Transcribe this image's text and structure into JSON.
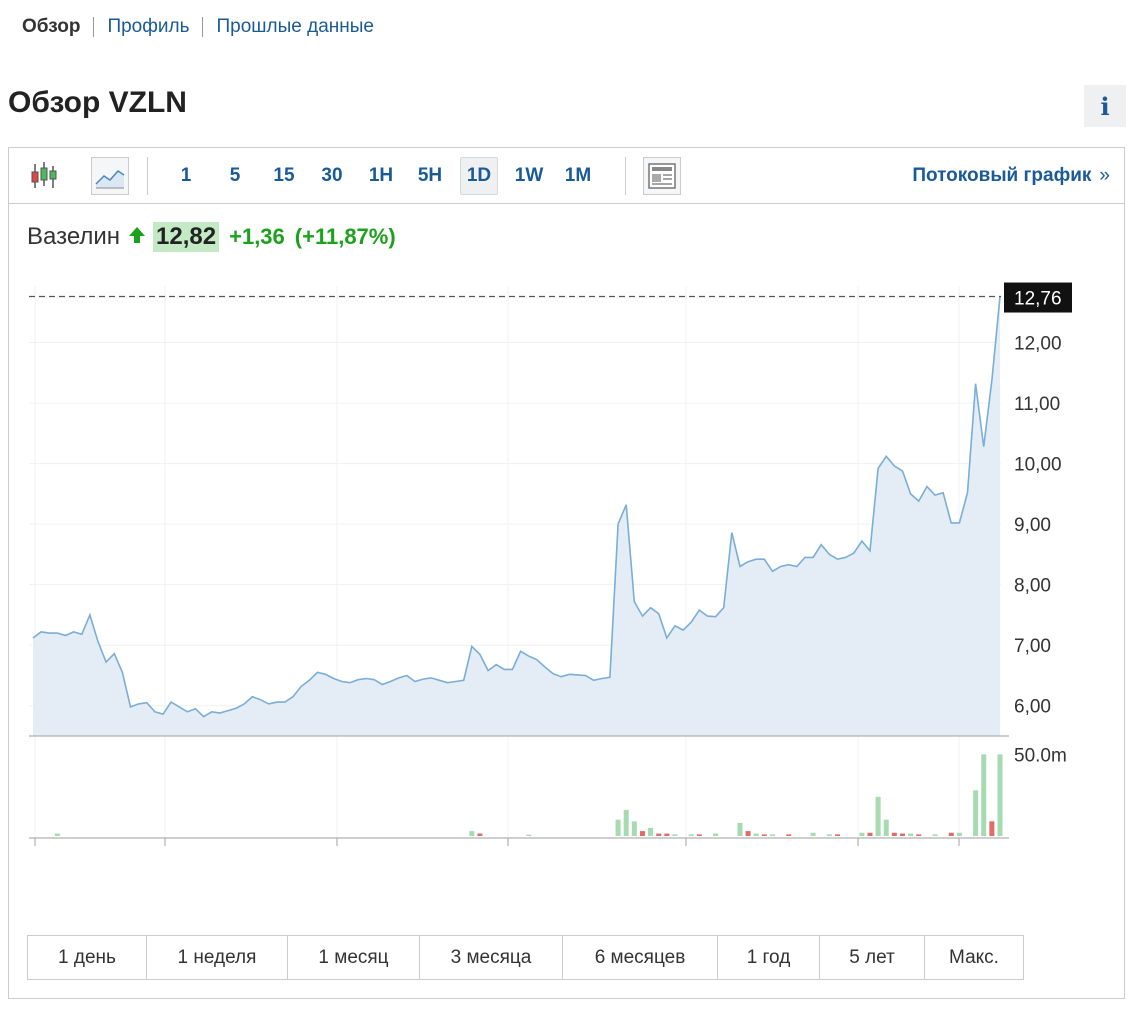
{
  "nav": {
    "overview": "Обзор",
    "profile": "Профиль",
    "history": "Прошлые данные"
  },
  "title": "Обзор VZLN",
  "info_label": "i",
  "toolbar": {
    "intervals": [
      "1",
      "5",
      "15",
      "30",
      "1H",
      "5H",
      "1D",
      "1W",
      "1M"
    ],
    "active_interval": "1D",
    "stream_link": "Потоковый график",
    "stream_arrow": "»"
  },
  "quote": {
    "name": "Вазелин",
    "price": "12,82",
    "change": "+1,36",
    "change_pct": "(+11,87%)",
    "direction": "up"
  },
  "ranges": [
    "1 день",
    "1 неделя",
    "1 месяц",
    "3 месяца",
    "6 месяцев",
    "1 год",
    "5 лет",
    "Макс."
  ],
  "colors": {
    "link": "#1a5a96",
    "up": "#1ca11c",
    "price_bg": "#c3eac5",
    "line": "#7aaed6",
    "area": "#e4edf6",
    "vol_up": "#a6dab1",
    "vol_down": "#e46a6a"
  },
  "chart_data": {
    "type": "area",
    "y_ticks": [
      "6,00",
      "7,00",
      "8,00",
      "9,00",
      "10,00",
      "11,00",
      "12,00"
    ],
    "ylim": [
      5.5,
      13.0
    ],
    "last_price_label": "12,76",
    "last_price": 12.76,
    "values": [
      7.12,
      7.22,
      7.2,
      7.2,
      7.16,
      7.22,
      7.18,
      7.5,
      7.06,
      6.72,
      6.86,
      6.55,
      5.98,
      6.03,
      6.05,
      5.9,
      5.86,
      6.06,
      5.98,
      5.9,
      5.95,
      5.82,
      5.9,
      5.88,
      5.92,
      5.96,
      6.03,
      6.15,
      6.1,
      6.03,
      6.06,
      6.06,
      6.15,
      6.32,
      6.42,
      6.55,
      6.52,
      6.45,
      6.4,
      6.38,
      6.43,
      6.45,
      6.43,
      6.35,
      6.4,
      6.46,
      6.5,
      6.4,
      6.44,
      6.46,
      6.42,
      6.38,
      6.4,
      6.42,
      6.98,
      6.85,
      6.58,
      6.68,
      6.6,
      6.6,
      6.9,
      6.82,
      6.76,
      6.64,
      6.53,
      6.48,
      6.52,
      6.51,
      6.5,
      6.42,
      6.45,
      6.47,
      9.0,
      9.32,
      7.72,
      7.48,
      7.62,
      7.52,
      7.12,
      7.32,
      7.25,
      7.38,
      7.58,
      7.48,
      7.47,
      7.62,
      8.86,
      8.3,
      8.38,
      8.42,
      8.42,
      8.22,
      8.3,
      8.33,
      8.3,
      8.45,
      8.45,
      8.66,
      8.5,
      8.42,
      8.45,
      8.52,
      8.72,
      8.56,
      9.92,
      10.12,
      9.96,
      9.88,
      9.5,
      9.38,
      9.62,
      9.48,
      9.52,
      9.02,
      9.02,
      9.52,
      11.32,
      10.28,
      11.38,
      12.76
    ],
    "volume_label": "50.0m",
    "volume_tick": 50,
    "volume_max": 60,
    "volume_bars": [
      {
        "i": 3,
        "v": 1.5,
        "up": true
      },
      {
        "i": 54,
        "v": 3,
        "up": true
      },
      {
        "i": 55,
        "v": 1.5,
        "up": false
      },
      {
        "i": 61,
        "v": 0.8,
        "up": true
      },
      {
        "i": 72,
        "v": 10,
        "up": true
      },
      {
        "i": 73,
        "v": 16,
        "up": true
      },
      {
        "i": 74,
        "v": 9,
        "up": true
      },
      {
        "i": 75,
        "v": 3,
        "up": false
      },
      {
        "i": 76,
        "v": 5,
        "up": true
      },
      {
        "i": 77,
        "v": 1.5,
        "up": false
      },
      {
        "i": 78,
        "v": 1.5,
        "up": false
      },
      {
        "i": 79,
        "v": 1,
        "up": true
      },
      {
        "i": 81,
        "v": 1,
        "up": true
      },
      {
        "i": 82,
        "v": 1,
        "up": false
      },
      {
        "i": 84,
        "v": 1.5,
        "up": true
      },
      {
        "i": 87,
        "v": 8,
        "up": true
      },
      {
        "i": 88,
        "v": 3,
        "up": false
      },
      {
        "i": 89,
        "v": 1.5,
        "up": true
      },
      {
        "i": 90,
        "v": 1,
        "up": false
      },
      {
        "i": 91,
        "v": 1,
        "up": true
      },
      {
        "i": 93,
        "v": 1,
        "up": false
      },
      {
        "i": 96,
        "v": 2,
        "up": true
      },
      {
        "i": 98,
        "v": 1,
        "up": true
      },
      {
        "i": 99,
        "v": 1,
        "up": false
      },
      {
        "i": 102,
        "v": 2,
        "up": true
      },
      {
        "i": 103,
        "v": 2,
        "up": false
      },
      {
        "i": 104,
        "v": 24,
        "up": true
      },
      {
        "i": 105,
        "v": 10,
        "up": true
      },
      {
        "i": 106,
        "v": 2,
        "up": false
      },
      {
        "i": 107,
        "v": 1.5,
        "up": false
      },
      {
        "i": 108,
        "v": 1.5,
        "up": true
      },
      {
        "i": 109,
        "v": 1,
        "up": false
      },
      {
        "i": 111,
        "v": 1,
        "up": true
      },
      {
        "i": 113,
        "v": 2,
        "up": false
      },
      {
        "i": 114,
        "v": 2,
        "up": true
      },
      {
        "i": 116,
        "v": 28,
        "up": true
      },
      {
        "i": 117,
        "v": 50,
        "up": true
      },
      {
        "i": 118,
        "v": 9,
        "up": false
      },
      {
        "i": 119,
        "v": 50,
        "up": true
      }
    ]
  }
}
